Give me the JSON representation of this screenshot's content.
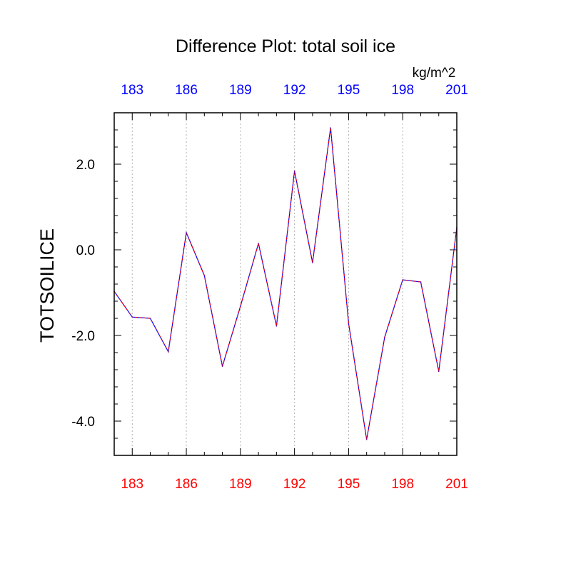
{
  "chart_data": {
    "type": "line",
    "title": "Difference Plot: total soil ice",
    "units": "kg/m^2",
    "ylabel": "TOTSOILICE",
    "xlabel": "",
    "x": [
      182,
      183,
      184,
      185,
      186,
      187,
      188,
      189,
      190,
      191,
      192,
      193,
      194,
      195,
      196,
      197,
      198,
      199,
      200,
      201
    ],
    "series": [
      {
        "values": [
          -0.97,
          -1.57,
          -1.6,
          -2.38,
          0.4,
          -0.6,
          -2.72,
          -1.32,
          0.15,
          -1.78,
          1.84,
          -0.3,
          2.85,
          -1.72,
          -4.43,
          -2.04,
          -0.7,
          -0.75,
          -2.84,
          0.52
        ],
        "color": "#6a0dad",
        "dash": "dashed"
      }
    ],
    "xlim": [
      182,
      201
    ],
    "ylim": [
      -4.8,
      3.2
    ],
    "x_ticks": [
      183,
      186,
      189,
      192,
      195,
      198,
      201
    ],
    "x_tick_labels": [
      "183",
      "186",
      "189",
      "192",
      "195",
      "198",
      "201"
    ],
    "y_ticks": [
      2.0,
      0.0,
      -2.0,
      -4.0
    ],
    "y_tick_labels": [
      "2.0",
      "0.0",
      "-2.0",
      "-4.0"
    ],
    "bottom_tick_color": "#ff0000",
    "top_tick_color": "#0000ff",
    "grid": "vertical dotted at x ticks"
  }
}
